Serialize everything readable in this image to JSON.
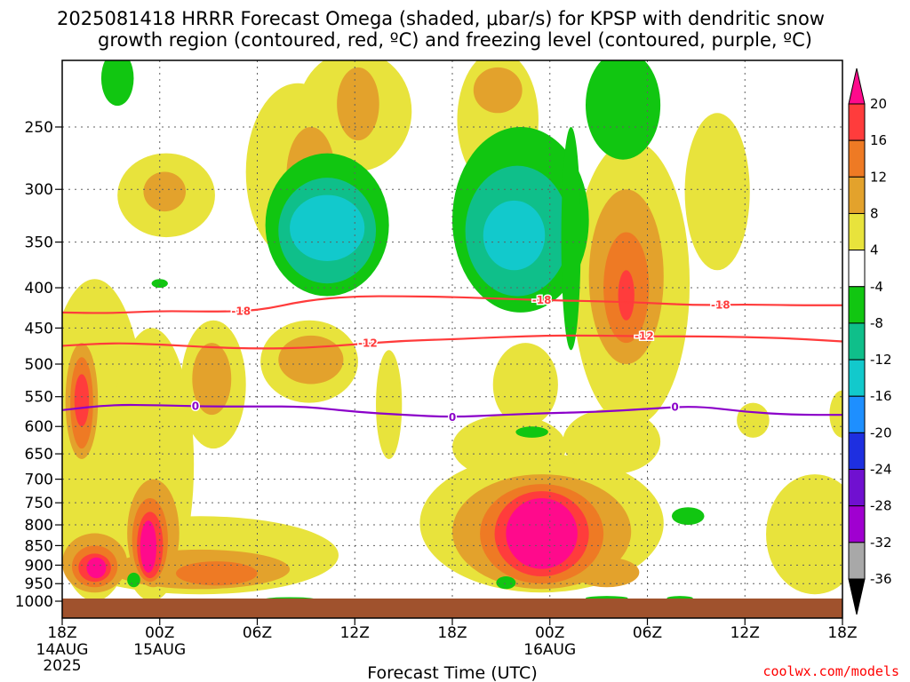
{
  "title_line1": "2025081418 HRRR Forecast Omega (shaded, μbar/s) for KPSP with dendritic snow",
  "title_line2": "growth region (contoured, red, ºC) and freezing level (contoured, purple, ºC)",
  "credit": "coolwx.com/models",
  "colors": {
    "credit": "#ff0000",
    "dgz_contour": "#ff3b3b",
    "freezing_contour": "#8b00c9",
    "ground": "#a0522d"
  },
  "chart_data": {
    "type": "heatmap",
    "title": "2025081418 HRRR Forecast Omega (shaded, μbar/s) for KPSP with dendritic snow growth region (contoured, red, ºC) and freezing level (contoured, purple, ºC)",
    "xlabel": "Forecast Time (UTC)",
    "ylabel": "",
    "y_scale": "log-pressure (hPa), reversed",
    "ylim": [
      1050,
      200
    ],
    "y_ticks": [
      250,
      300,
      350,
      400,
      450,
      500,
      550,
      600,
      650,
      700,
      750,
      800,
      850,
      900,
      950,
      1000
    ],
    "x_hours_range": [
      0,
      48
    ],
    "x_ticks": [
      {
        "hour": 0,
        "label": "18Z",
        "sub1": "14AUG",
        "sub2": "2025"
      },
      {
        "hour": 6,
        "label": "00Z",
        "sub1": "15AUG",
        "sub2": ""
      },
      {
        "hour": 12,
        "label": "06Z",
        "sub1": "",
        "sub2": ""
      },
      {
        "hour": 18,
        "label": "12Z",
        "sub1": "",
        "sub2": ""
      },
      {
        "hour": 24,
        "label": "18Z",
        "sub1": "",
        "sub2": ""
      },
      {
        "hour": 30,
        "label": "00Z",
        "sub1": "16AUG",
        "sub2": ""
      },
      {
        "hour": 36,
        "label": "06Z",
        "sub1": "",
        "sub2": ""
      },
      {
        "hour": 42,
        "label": "12Z",
        "sub1": "",
        "sub2": ""
      },
      {
        "hour": 48,
        "label": "18Z",
        "sub1": "",
        "sub2": ""
      }
    ],
    "grid": true,
    "colorbar": {
      "ticks": [
        "20",
        "16",
        "12",
        "8",
        "4",
        "-4",
        "-8",
        "-12",
        "-16",
        "-20",
        "-24",
        "-28",
        "-32",
        "-36"
      ],
      "bands": [
        {
          "range": ">20",
          "color": "#ff0a8c"
        },
        {
          "range": "16 to 20",
          "color": "#ff3c3c"
        },
        {
          "range": "12 to 16",
          "color": "#ee7a24"
        },
        {
          "range": "8 to 12",
          "color": "#e3a22c"
        },
        {
          "range": "4 to 8",
          "color": "#e8e33c"
        },
        {
          "range": "-4 to 4",
          "color": "#ffffff"
        },
        {
          "range": "-8 to -4",
          "color": "#11c611"
        },
        {
          "range": "-12 to -8",
          "color": "#0fbf8a"
        },
        {
          "range": "-16 to -12",
          "color": "#12c9cc"
        },
        {
          "range": "-20 to -16",
          "color": "#1e8fff"
        },
        {
          "range": "-24 to -20",
          "color": "#1e2fe0"
        },
        {
          "range": "-28 to -24",
          "color": "#7010d0"
        },
        {
          "range": "-32 to -28",
          "color": "#a000d0"
        },
        {
          "range": "-36 to -32",
          "color": "#a8a8a8"
        },
        {
          "range": "<-36",
          "color": "#000000"
        }
      ]
    },
    "contours": [
      {
        "level": -18,
        "label": "-18",
        "color": "#ff3b3b",
        "hours": [
          0,
          3,
          6,
          9,
          12,
          15,
          18,
          21,
          24,
          27,
          30,
          33,
          36,
          39,
          42,
          45,
          48
        ],
        "pressure": [
          430,
          431,
          428,
          429,
          428,
          415,
          410,
          410,
          411,
          413,
          415,
          416,
          418,
          421,
          420,
          421,
          421
        ]
      },
      {
        "level": -12,
        "label": "-12",
        "color": "#ff3b3b",
        "hours": [
          0,
          3,
          6,
          9,
          12,
          15,
          18,
          21,
          24,
          27,
          30,
          33,
          36,
          39,
          42,
          45,
          48
        ],
        "pressure": [
          474,
          470,
          472,
          476,
          478,
          477,
          472,
          467,
          465,
          462,
          460,
          460,
          461,
          461,
          462,
          464,
          468
        ]
      },
      {
        "level": 0,
        "label": "0",
        "color": "#8b00c9",
        "hours": [
          0,
          3,
          6,
          9,
          12,
          15,
          18,
          21,
          24,
          27,
          30,
          33,
          36,
          39,
          42,
          45,
          48
        ],
        "pressure": [
          572,
          563,
          564,
          566,
          566,
          566,
          575,
          580,
          584,
          580,
          577,
          575,
          570,
          565,
          575,
          580,
          580
        ]
      }
    ],
    "omega_features": [
      {
        "hour": 2.0,
        "p_center": 880,
        "value": 20,
        "note": "pink core"
      },
      {
        "hour": 5.3,
        "p_center": 820,
        "value": 24,
        "note": "pink core"
      },
      {
        "hour": 1.3,
        "p_center": 540,
        "value": 16,
        "note": "red core"
      },
      {
        "hour": 9.2,
        "p_center": 520,
        "value": 12
      },
      {
        "hour": 15.3,
        "p_center": 490,
        "value": 12
      },
      {
        "hour": 5.6,
        "p_center": 505,
        "value": 8
      },
      {
        "hour": 6.3,
        "p_center": 300,
        "value": 12
      },
      {
        "hour": 15.3,
        "p_center": 310,
        "value": 8
      },
      {
        "hour": 18.2,
        "p_center": 240,
        "value": 8
      },
      {
        "hour": 26.8,
        "p_center": 230,
        "value": 8
      },
      {
        "hour": 29.5,
        "p_center": 790,
        "value": 28,
        "note": "main pink core"
      },
      {
        "hour": 34.7,
        "p_center": 400,
        "value": 16
      },
      {
        "hour": 16.3,
        "p_center": 335,
        "value": -16
      },
      {
        "hour": 28.2,
        "p_center": 330,
        "value": -14
      },
      {
        "hour": 34.5,
        "p_center": 245,
        "value": -6
      },
      {
        "hour": 31.3,
        "p_center": 340,
        "value": -8
      },
      {
        "hour": 27.3,
        "p_center": 950,
        "value": -12
      },
      {
        "hour": 9.5,
        "p_center": 905,
        "value": 12
      }
    ]
  }
}
